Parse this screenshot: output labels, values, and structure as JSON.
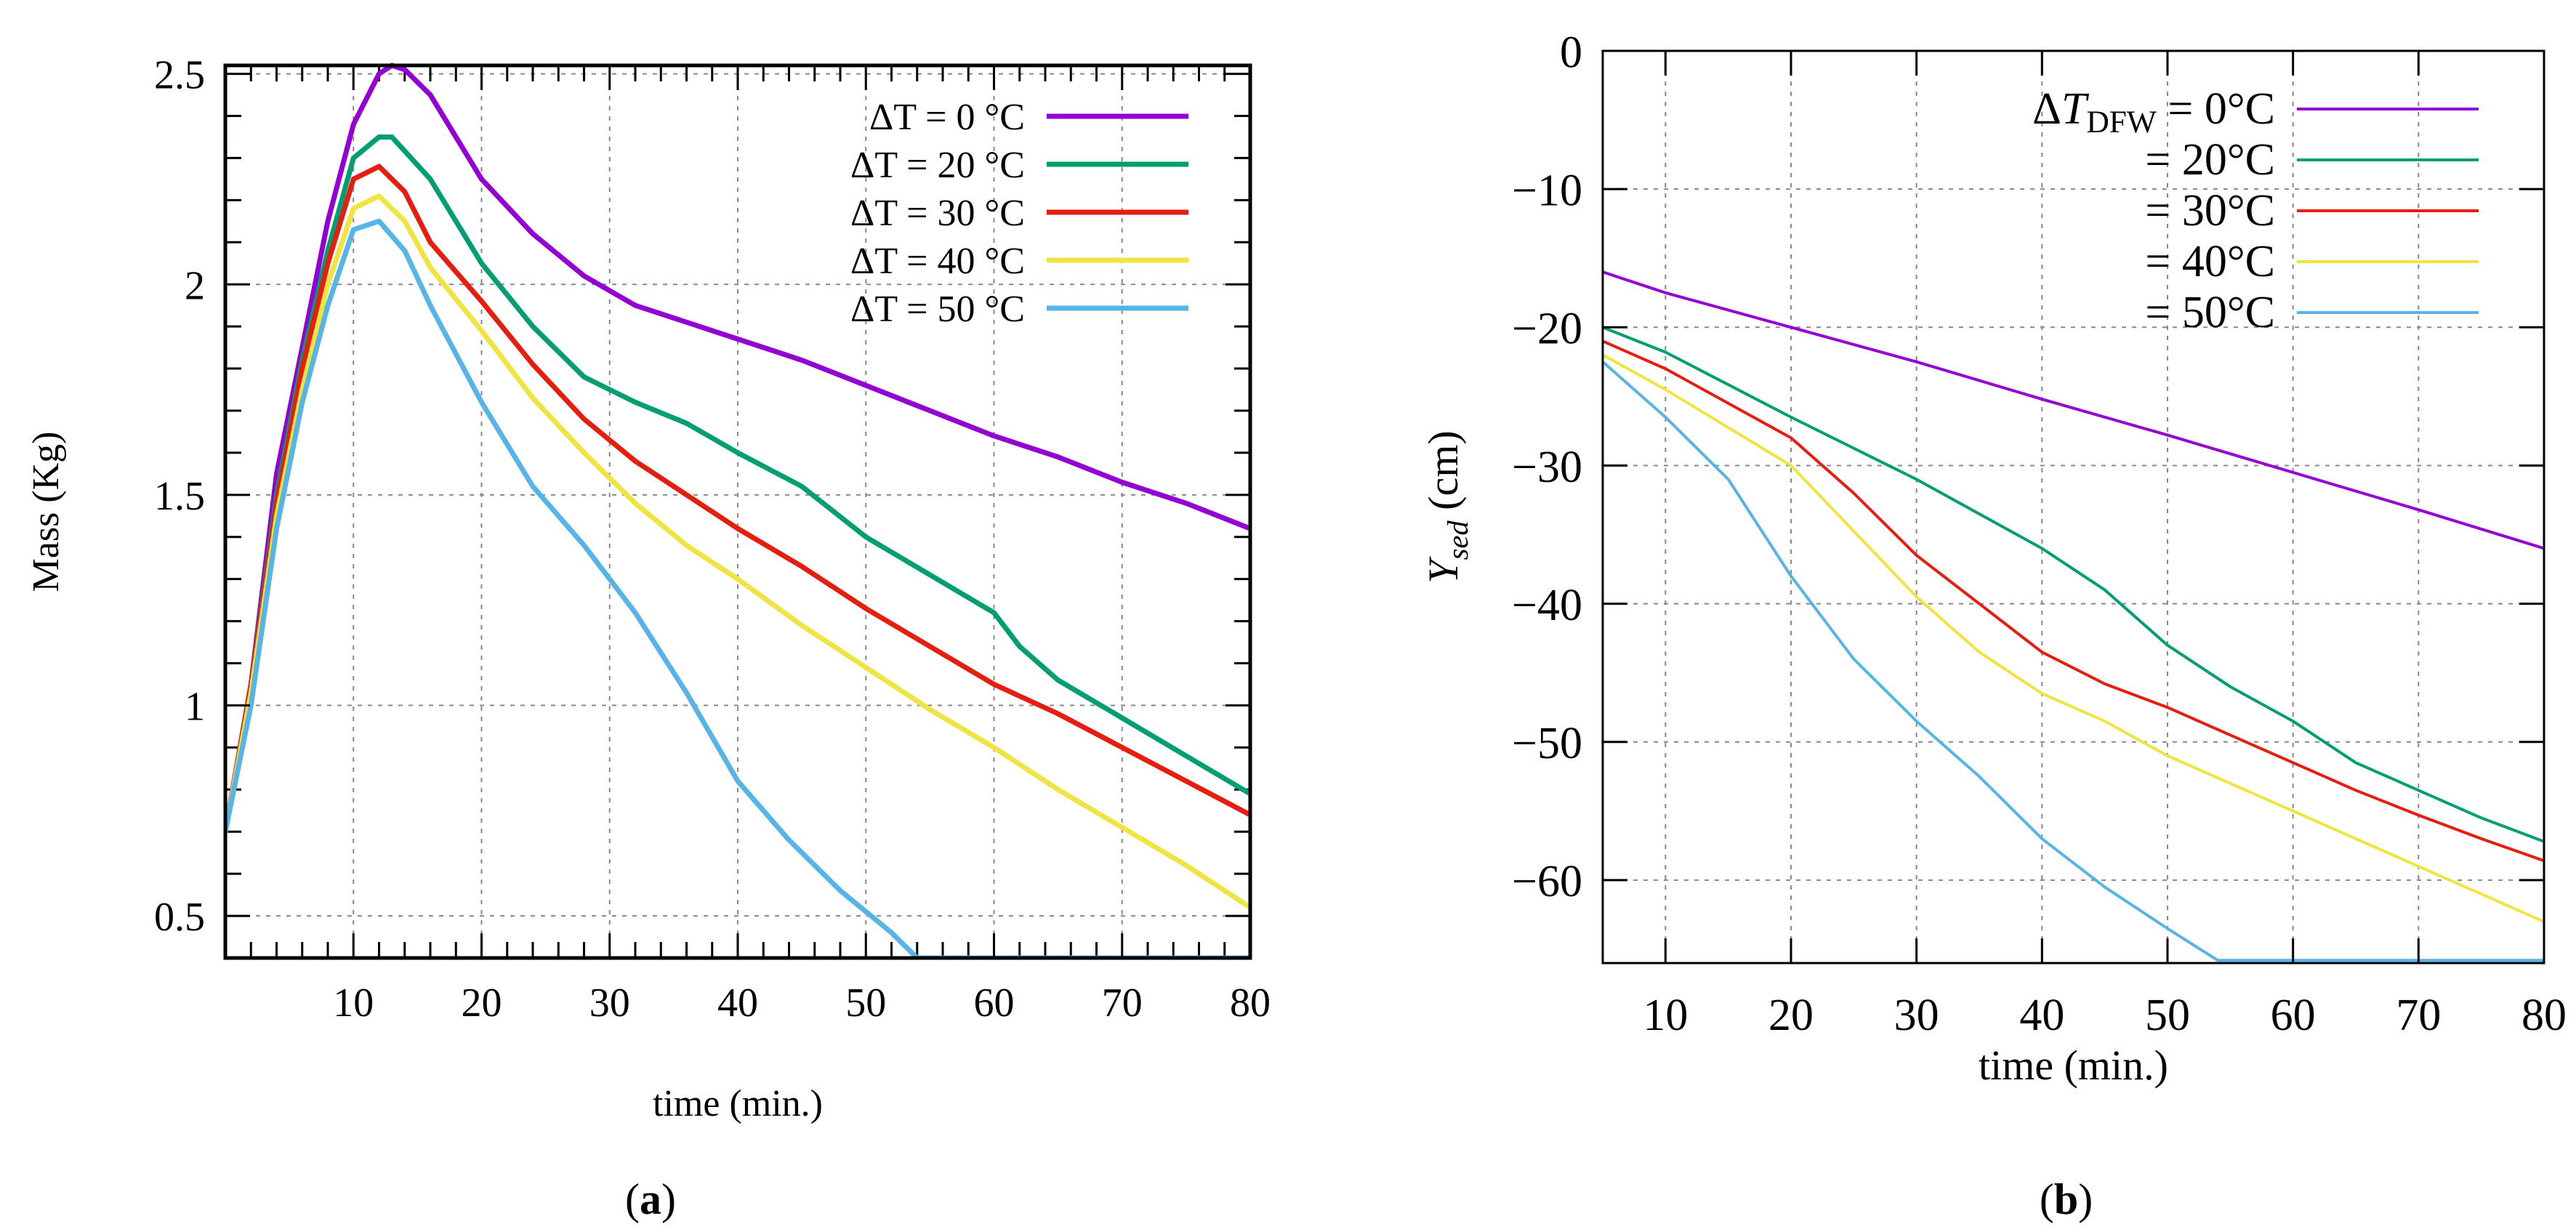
{
  "chart_data": [
    {
      "type": "line",
      "panel": "a",
      "panel_label": "a",
      "xlabel": "time (min.)",
      "ylabel": "Mass (Kg)",
      "xlim": [
        0,
        80
      ],
      "ylim": [
        0.4,
        2.52
      ],
      "xticks": [
        10,
        20,
        30,
        40,
        50,
        60,
        70,
        80
      ],
      "yticks": [
        0.5,
        1,
        1.5,
        2,
        2.5
      ],
      "ytick_labels": [
        "0.5",
        "1",
        "1.5",
        "2",
        "2.5"
      ],
      "grid": true,
      "legend_position": "top-right",
      "series": [
        {
          "name": "ΔT = 0 °C",
          "color": "#9400d3",
          "points": [
            [
              0,
              0.7
            ],
            [
              2,
              1.05
            ],
            [
              4,
              1.55
            ],
            [
              6,
              1.85
            ],
            [
              8,
              2.15
            ],
            [
              10,
              2.38
            ],
            [
              12,
              2.5
            ],
            [
              13,
              2.52
            ],
            [
              14,
              2.51
            ],
            [
              16,
              2.45
            ],
            [
              18,
              2.35
            ],
            [
              20,
              2.25
            ],
            [
              24,
              2.12
            ],
            [
              28,
              2.02
            ],
            [
              32,
              1.95
            ],
            [
              36,
              1.91
            ],
            [
              40,
              1.87
            ],
            [
              45,
              1.82
            ],
            [
              50,
              1.76
            ],
            [
              55,
              1.7
            ],
            [
              60,
              1.64
            ],
            [
              65,
              1.59
            ],
            [
              70,
              1.53
            ],
            [
              75,
              1.48
            ],
            [
              80,
              1.42
            ]
          ]
        },
        {
          "name": "ΔT = 20 °C",
          "color": "#009e73",
          "points": [
            [
              0,
              0.7
            ],
            [
              2,
              1.05
            ],
            [
              4,
              1.5
            ],
            [
              6,
              1.82
            ],
            [
              8,
              2.08
            ],
            [
              10,
              2.3
            ],
            [
              12,
              2.35
            ],
            [
              13,
              2.35
            ],
            [
              16,
              2.25
            ],
            [
              20,
              2.05
            ],
            [
              24,
              1.9
            ],
            [
              28,
              1.78
            ],
            [
              32,
              1.72
            ],
            [
              36,
              1.67
            ],
            [
              40,
              1.6
            ],
            [
              45,
              1.52
            ],
            [
              50,
              1.4
            ],
            [
              55,
              1.31
            ],
            [
              60,
              1.22
            ],
            [
              62,
              1.14
            ],
            [
              65,
              1.06
            ],
            [
              70,
              0.97
            ],
            [
              75,
              0.88
            ],
            [
              80,
              0.79
            ]
          ]
        },
        {
          "name": "ΔT = 30 °C",
          "color": "#e51e10",
          "points": [
            [
              0,
              0.7
            ],
            [
              2,
              1.05
            ],
            [
              4,
              1.48
            ],
            [
              6,
              1.8
            ],
            [
              8,
              2.05
            ],
            [
              10,
              2.25
            ],
            [
              12,
              2.28
            ],
            [
              14,
              2.22
            ],
            [
              16,
              2.1
            ],
            [
              20,
              1.96
            ],
            [
              24,
              1.81
            ],
            [
              28,
              1.68
            ],
            [
              32,
              1.58
            ],
            [
              36,
              1.5
            ],
            [
              40,
              1.42
            ],
            [
              45,
              1.33
            ],
            [
              50,
              1.23
            ],
            [
              55,
              1.14
            ],
            [
              60,
              1.05
            ],
            [
              65,
              0.98
            ],
            [
              70,
              0.9
            ],
            [
              75,
              0.82
            ],
            [
              80,
              0.74
            ]
          ]
        },
        {
          "name": "ΔT = 40 °C",
          "color": "#f0e442",
          "points": [
            [
              0,
              0.7
            ],
            [
              2,
              1.03
            ],
            [
              4,
              1.45
            ],
            [
              6,
              1.75
            ],
            [
              8,
              2.0
            ],
            [
              10,
              2.18
            ],
            [
              12,
              2.21
            ],
            [
              14,
              2.15
            ],
            [
              16,
              2.04
            ],
            [
              20,
              1.89
            ],
            [
              24,
              1.73
            ],
            [
              28,
              1.6
            ],
            [
              32,
              1.48
            ],
            [
              36,
              1.38
            ],
            [
              40,
              1.3
            ],
            [
              45,
              1.19
            ],
            [
              50,
              1.09
            ],
            [
              55,
              0.99
            ],
            [
              60,
              0.9
            ],
            [
              65,
              0.8
            ],
            [
              70,
              0.71
            ],
            [
              75,
              0.62
            ],
            [
              80,
              0.52
            ]
          ]
        },
        {
          "name": "ΔT = 50 °C",
          "color": "#56b4e9",
          "points": [
            [
              0,
              0.7
            ],
            [
              2,
              1.0
            ],
            [
              4,
              1.42
            ],
            [
              6,
              1.72
            ],
            [
              8,
              1.95
            ],
            [
              10,
              2.13
            ],
            [
              12,
              2.15
            ],
            [
              14,
              2.08
            ],
            [
              16,
              1.95
            ],
            [
              20,
              1.72
            ],
            [
              24,
              1.52
            ],
            [
              28,
              1.38
            ],
            [
              32,
              1.22
            ],
            [
              36,
              1.03
            ],
            [
              40,
              0.82
            ],
            [
              44,
              0.68
            ],
            [
              48,
              0.56
            ],
            [
              52,
              0.46
            ],
            [
              54,
              0.4
            ],
            [
              60,
              0.4
            ],
            [
              70,
              0.4
            ],
            [
              80,
              0.4
            ]
          ]
        }
      ]
    },
    {
      "type": "line",
      "panel": "b",
      "panel_label": "b",
      "xlabel": "time (min.)",
      "ylabel_main": "Y",
      "ylabel_sub": "sed",
      "ylabel_unit": " (cm)",
      "xlim": [
        5,
        80
      ],
      "ylim": [
        -66,
        0
      ],
      "xticks": [
        10,
        20,
        30,
        40,
        50,
        60,
        70,
        80
      ],
      "yticks": [
        0,
        -10,
        -20,
        -30,
        -40,
        -50,
        -60
      ],
      "ytick_labels": [
        "0",
        "−10",
        "−20",
        "−30",
        "−40",
        "−50",
        "−60"
      ],
      "grid": true,
      "legend_position": "top-right",
      "legend_header": {
        "delta": "Δ",
        "var": "T",
        "sub": "DFW"
      },
      "series": [
        {
          "name": "= 0°C",
          "label_pad": "  0°C",
          "color": "#9400d3",
          "points": [
            [
              5,
              -16
            ],
            [
              10,
              -17.5
            ],
            [
              20,
              -20
            ],
            [
              30,
              -22.5
            ],
            [
              40,
              -25.2
            ],
            [
              50,
              -27.8
            ],
            [
              60,
              -30.5
            ],
            [
              70,
              -33.2
            ],
            [
              80,
              -36
            ]
          ]
        },
        {
          "name": "= 20°C",
          "label_pad": "20°C",
          "color": "#009e73",
          "points": [
            [
              5,
              -20
            ],
            [
              10,
              -21.8
            ],
            [
              20,
              -26.5
            ],
            [
              30,
              -31
            ],
            [
              40,
              -36
            ],
            [
              45,
              -39
            ],
            [
              50,
              -43
            ],
            [
              55,
              -46
            ],
            [
              60,
              -48.5
            ],
            [
              65,
              -51.5
            ],
            [
              70,
              -53.5
            ],
            [
              75,
              -55.5
            ],
            [
              80,
              -57.2
            ]
          ]
        },
        {
          "name": "= 30°C",
          "label_pad": "30°C",
          "color": "#e51e10",
          "points": [
            [
              5,
              -21
            ],
            [
              10,
              -23
            ],
            [
              20,
              -28
            ],
            [
              25,
              -32
            ],
            [
              30,
              -36.5
            ],
            [
              35,
              -40
            ],
            [
              40,
              -43.5
            ],
            [
              45,
              -45.8
            ],
            [
              50,
              -47.5
            ],
            [
              55,
              -49.5
            ],
            [
              60,
              -51.5
            ],
            [
              65,
              -53.5
            ],
            [
              70,
              -55.3
            ],
            [
              75,
              -57
            ],
            [
              80,
              -58.6
            ]
          ]
        },
        {
          "name": "= 40°C",
          "label_pad": "40°C",
          "color": "#f0e442",
          "points": [
            [
              5,
              -22
            ],
            [
              10,
              -24.5
            ],
            [
              20,
              -30
            ],
            [
              30,
              -39.5
            ],
            [
              35,
              -43.5
            ],
            [
              40,
              -46.5
            ],
            [
              45,
              -48.5
            ],
            [
              50,
              -51
            ],
            [
              55,
              -53
            ],
            [
              60,
              -55
            ],
            [
              65,
              -57
            ],
            [
              70,
              -59
            ],
            [
              75,
              -61
            ],
            [
              80,
              -63
            ]
          ]
        },
        {
          "name": "= 50°C",
          "label_pad": "50°C",
          "color": "#56b4e9",
          "points": [
            [
              5,
              -22.5
            ],
            [
              10,
              -26.5
            ],
            [
              15,
              -31
            ],
            [
              20,
              -38
            ],
            [
              25,
              -44
            ],
            [
              30,
              -48.5
            ],
            [
              35,
              -52.5
            ],
            [
              40,
              -57
            ],
            [
              45,
              -60.5
            ],
            [
              50,
              -63.5
            ],
            [
              54,
              -65.8
            ],
            [
              60,
              -65.8
            ],
            [
              70,
              -65.8
            ],
            [
              80,
              -65.8
            ]
          ]
        }
      ]
    }
  ]
}
